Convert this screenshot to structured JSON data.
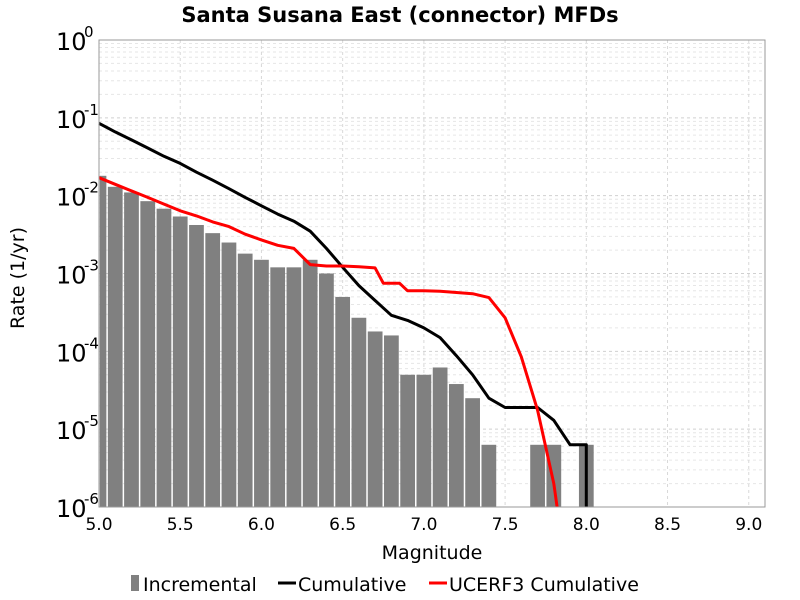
{
  "chart_data": {
    "type": "bar",
    "title": "Santa Susana East (connector) MFDs",
    "xlabel": "Magnitude",
    "ylabel": "Rate (1/yr)",
    "xlim": [
      5.0,
      9.1
    ],
    "ylim": [
      1e-06,
      1
    ],
    "yscale": "log",
    "grid": true,
    "legend_position": "bottom",
    "x_ticks": [
      "5.0",
      "5.5",
      "6.0",
      "6.5",
      "7.0",
      "7.5",
      "8.0",
      "8.5",
      "9.0"
    ],
    "y_tick_base": "10",
    "y_tick_exponents": [
      "-6",
      "-5",
      "-4",
      "-3",
      "-2",
      "-1",
      "0"
    ],
    "series": [
      {
        "name": "Incremental",
        "type": "bar",
        "color": "#808080",
        "x": [
          5.0,
          5.1,
          5.2,
          5.3,
          5.4,
          5.5,
          5.6,
          5.7,
          5.8,
          5.9,
          6.0,
          6.1,
          6.2,
          6.3,
          6.4,
          6.5,
          6.6,
          6.7,
          6.8,
          6.9,
          7.0,
          7.1,
          7.2,
          7.3,
          7.4,
          7.5,
          7.6,
          7.7,
          7.8,
          7.9,
          8.0
        ],
        "y": [
          0.018,
          0.013,
          0.011,
          0.0085,
          0.0068,
          0.0054,
          0.0042,
          0.0033,
          0.0025,
          0.0018,
          0.0015,
          0.0012,
          0.0012,
          0.0015,
          0.001,
          0.0005,
          0.00027,
          0.00018,
          0.00016,
          5e-05,
          5e-05,
          6.2e-05,
          3.8e-05,
          2.5e-05,
          6.3e-06,
          null,
          null,
          6.3e-06,
          6.3e-06,
          null,
          6.3e-06
        ]
      },
      {
        "name": "Cumulative",
        "type": "line",
        "color": "#000000",
        "x": [
          5.0,
          5.1,
          5.2,
          5.3,
          5.4,
          5.5,
          5.6,
          5.7,
          5.8,
          5.9,
          6.0,
          6.1,
          6.2,
          6.3,
          6.4,
          6.5,
          6.6,
          6.7,
          6.8,
          6.9,
          7.0,
          7.1,
          7.2,
          7.3,
          7.4,
          7.5,
          7.6,
          7.7,
          7.8,
          7.9,
          8.0,
          8.0
        ],
        "y": [
          0.085,
          0.066,
          0.052,
          0.041,
          0.032,
          0.026,
          0.02,
          0.0158,
          0.0123,
          0.0095,
          0.0074,
          0.0058,
          0.0047,
          0.0035,
          0.0021,
          0.0012,
          0.0007,
          0.00045,
          0.00029,
          0.00025,
          0.0002,
          0.00015,
          8.8e-05,
          5e-05,
          2.5e-05,
          1.9e-05,
          1.9e-05,
          1.9e-05,
          1.3e-05,
          6.3e-06,
          6.3e-06,
          1e-06
        ]
      },
      {
        "name": "UCERF3 Cumulative",
        "type": "line",
        "color": "#ff0000",
        "x": [
          5.0,
          5.1,
          5.2,
          5.3,
          5.4,
          5.5,
          5.6,
          5.7,
          5.8,
          5.9,
          6.0,
          6.1,
          6.2,
          6.3,
          6.4,
          6.5,
          6.6,
          6.7,
          6.75,
          6.8,
          6.85,
          6.9,
          6.95,
          7.0,
          7.1,
          7.2,
          7.3,
          7.4,
          7.5,
          7.6,
          7.7,
          7.8,
          7.82
        ],
        "y": [
          0.017,
          0.014,
          0.0115,
          0.0095,
          0.0078,
          0.0064,
          0.0055,
          0.0046,
          0.004,
          0.0032,
          0.0027,
          0.0023,
          0.0021,
          0.0013,
          0.00125,
          0.00125,
          0.00122,
          0.00118,
          0.00075,
          0.00075,
          0.00075,
          0.0006,
          0.0006,
          0.0006,
          0.00059,
          0.00057,
          0.00055,
          0.00049,
          0.00027,
          8.5e-05,
          1.75e-05,
          2e-06,
          1e-06
        ]
      }
    ]
  }
}
